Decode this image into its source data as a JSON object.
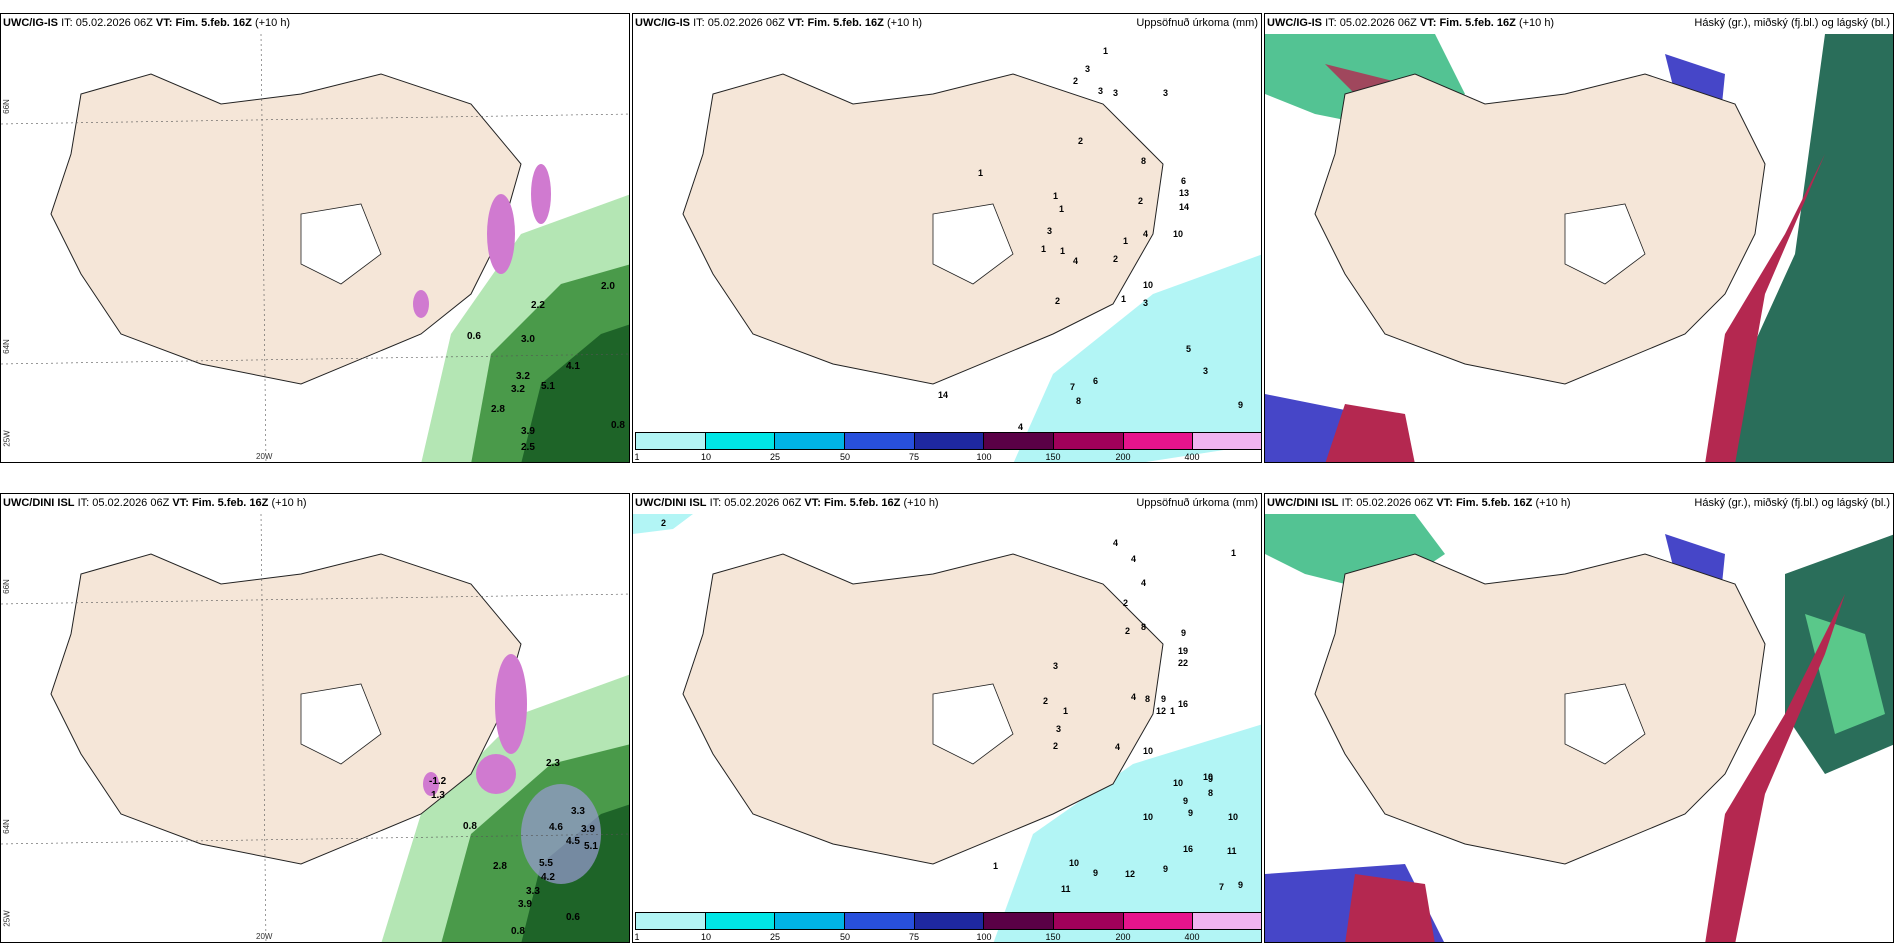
{
  "panels": {
    "p1": {
      "model": "UWC/IG-IS",
      "it_label": "IT:",
      "it": "05.02.2026 06Z",
      "vt_label": "VT:",
      "vt": "Fim. 5.feb. 16Z",
      "lead": "(+10 h)"
    },
    "p2": {
      "model": "UWC/IG-IS",
      "it_label": "IT:",
      "it": "05.02.2026 06Z",
      "vt_label": "VT:",
      "vt": "Fim. 5.feb. 16Z",
      "lead": "(+10 h)",
      "right_title": "Uppsöfnuð úrkoma (mm)"
    },
    "p3": {
      "model": "UWC/IG-IS",
      "it_label": "IT:",
      "it": "05.02.2026 06Z",
      "vt_label": "VT:",
      "vt": "Fim. 5.feb. 16Z",
      "lead": "(+10 h)",
      "right_title": "Háský (gr.), miðský (fj.bl.) og lágský (bl.)"
    },
    "p4": {
      "model": "UWC/DINI ISL",
      "it_label": "IT:",
      "it": "05.02.2026 06Z",
      "vt_label": "VT:",
      "vt": "Fim. 5.feb. 16Z",
      "lead": "(+10 h)"
    },
    "p5": {
      "model": "UWC/DINI ISL",
      "it_label": "IT:",
      "it": "05.02.2026 06Z",
      "vt_label": "VT:",
      "vt": "Fim. 5.feb. 16Z",
      "lead": "(+10 h)",
      "right_title": "Uppsöfnuð úrkoma (mm)"
    },
    "p6": {
      "model": "UWC/DINI ISL",
      "it_label": "IT:",
      "it": "05.02.2026 06Z",
      "vt_label": "VT:",
      "vt": "Fim. 5.feb. 16Z",
      "lead": "(+10 h)",
      "right_title": "Háský (gr.), miðský (fj.bl.) og lágský (bl.)"
    }
  },
  "grid": {
    "lon_20w": "20W",
    "lat_66n": "66N",
    "lat_64n": "64N",
    "lon_25w": "25W"
  },
  "colorbar": {
    "ticks": [
      "1",
      "10",
      "25",
      "50",
      "75",
      "100",
      "150",
      "200",
      "400"
    ],
    "colors": [
      "#b2f5f5",
      "#00e6e6",
      "#00b4e6",
      "#2850dc",
      "#1e28a0",
      "#5a0046",
      "#a0005a",
      "#e6148c",
      "#f0b4f0"
    ]
  },
  "colors": {
    "land": "#f5e6d8",
    "sea_green_light": "#b4e6b4",
    "sea_green_dark": "#1e6428",
    "precip_light": "#b2f5f5",
    "low_cloud": "#4646c8",
    "mid_cloud": "#b42850",
    "high_cloud": "#28b478"
  },
  "precip_labels_top": [
    "1",
    "3",
    "2",
    "3",
    "3",
    "3",
    "2",
    "1",
    "8",
    "6",
    "13",
    "14",
    "1",
    "1",
    "2",
    "1",
    "10",
    "3",
    "4",
    "1",
    "1",
    "4",
    "2",
    "10",
    "2",
    "1",
    "3",
    "5",
    "3",
    "7",
    "8",
    "6",
    "9",
    "4",
    "6",
    "14"
  ],
  "precip_labels_bottom": [
    "2",
    "4",
    "4",
    "1",
    "2",
    "4",
    "2",
    "8",
    "9",
    "19",
    "22",
    "3",
    "16",
    "2",
    "4",
    "8",
    "9",
    "12",
    "1",
    "1",
    "3",
    "2",
    "4",
    "10",
    "10",
    "9",
    "8",
    "9",
    "10",
    "10",
    "9",
    "10",
    "16",
    "11",
    "10",
    "9",
    "12",
    "11",
    "9",
    "1",
    "7",
    "9"
  ],
  "temp_labels_top": [
    "2.0",
    "4.1",
    "5.1",
    "3.2",
    "3.2",
    "2.8",
    "3.9",
    "2.5",
    "0.8",
    "0.6",
    "3.0",
    "2.2"
  ],
  "temp_labels_bottom": [
    "-1.2",
    "1.3",
    "3.3",
    "3.9",
    "4.6",
    "4.5",
    "5.1",
    "2.8",
    "5.5",
    "4.2",
    "3.3",
    "3.9",
    "0.8",
    "0.6",
    "2.3",
    "0.8"
  ]
}
